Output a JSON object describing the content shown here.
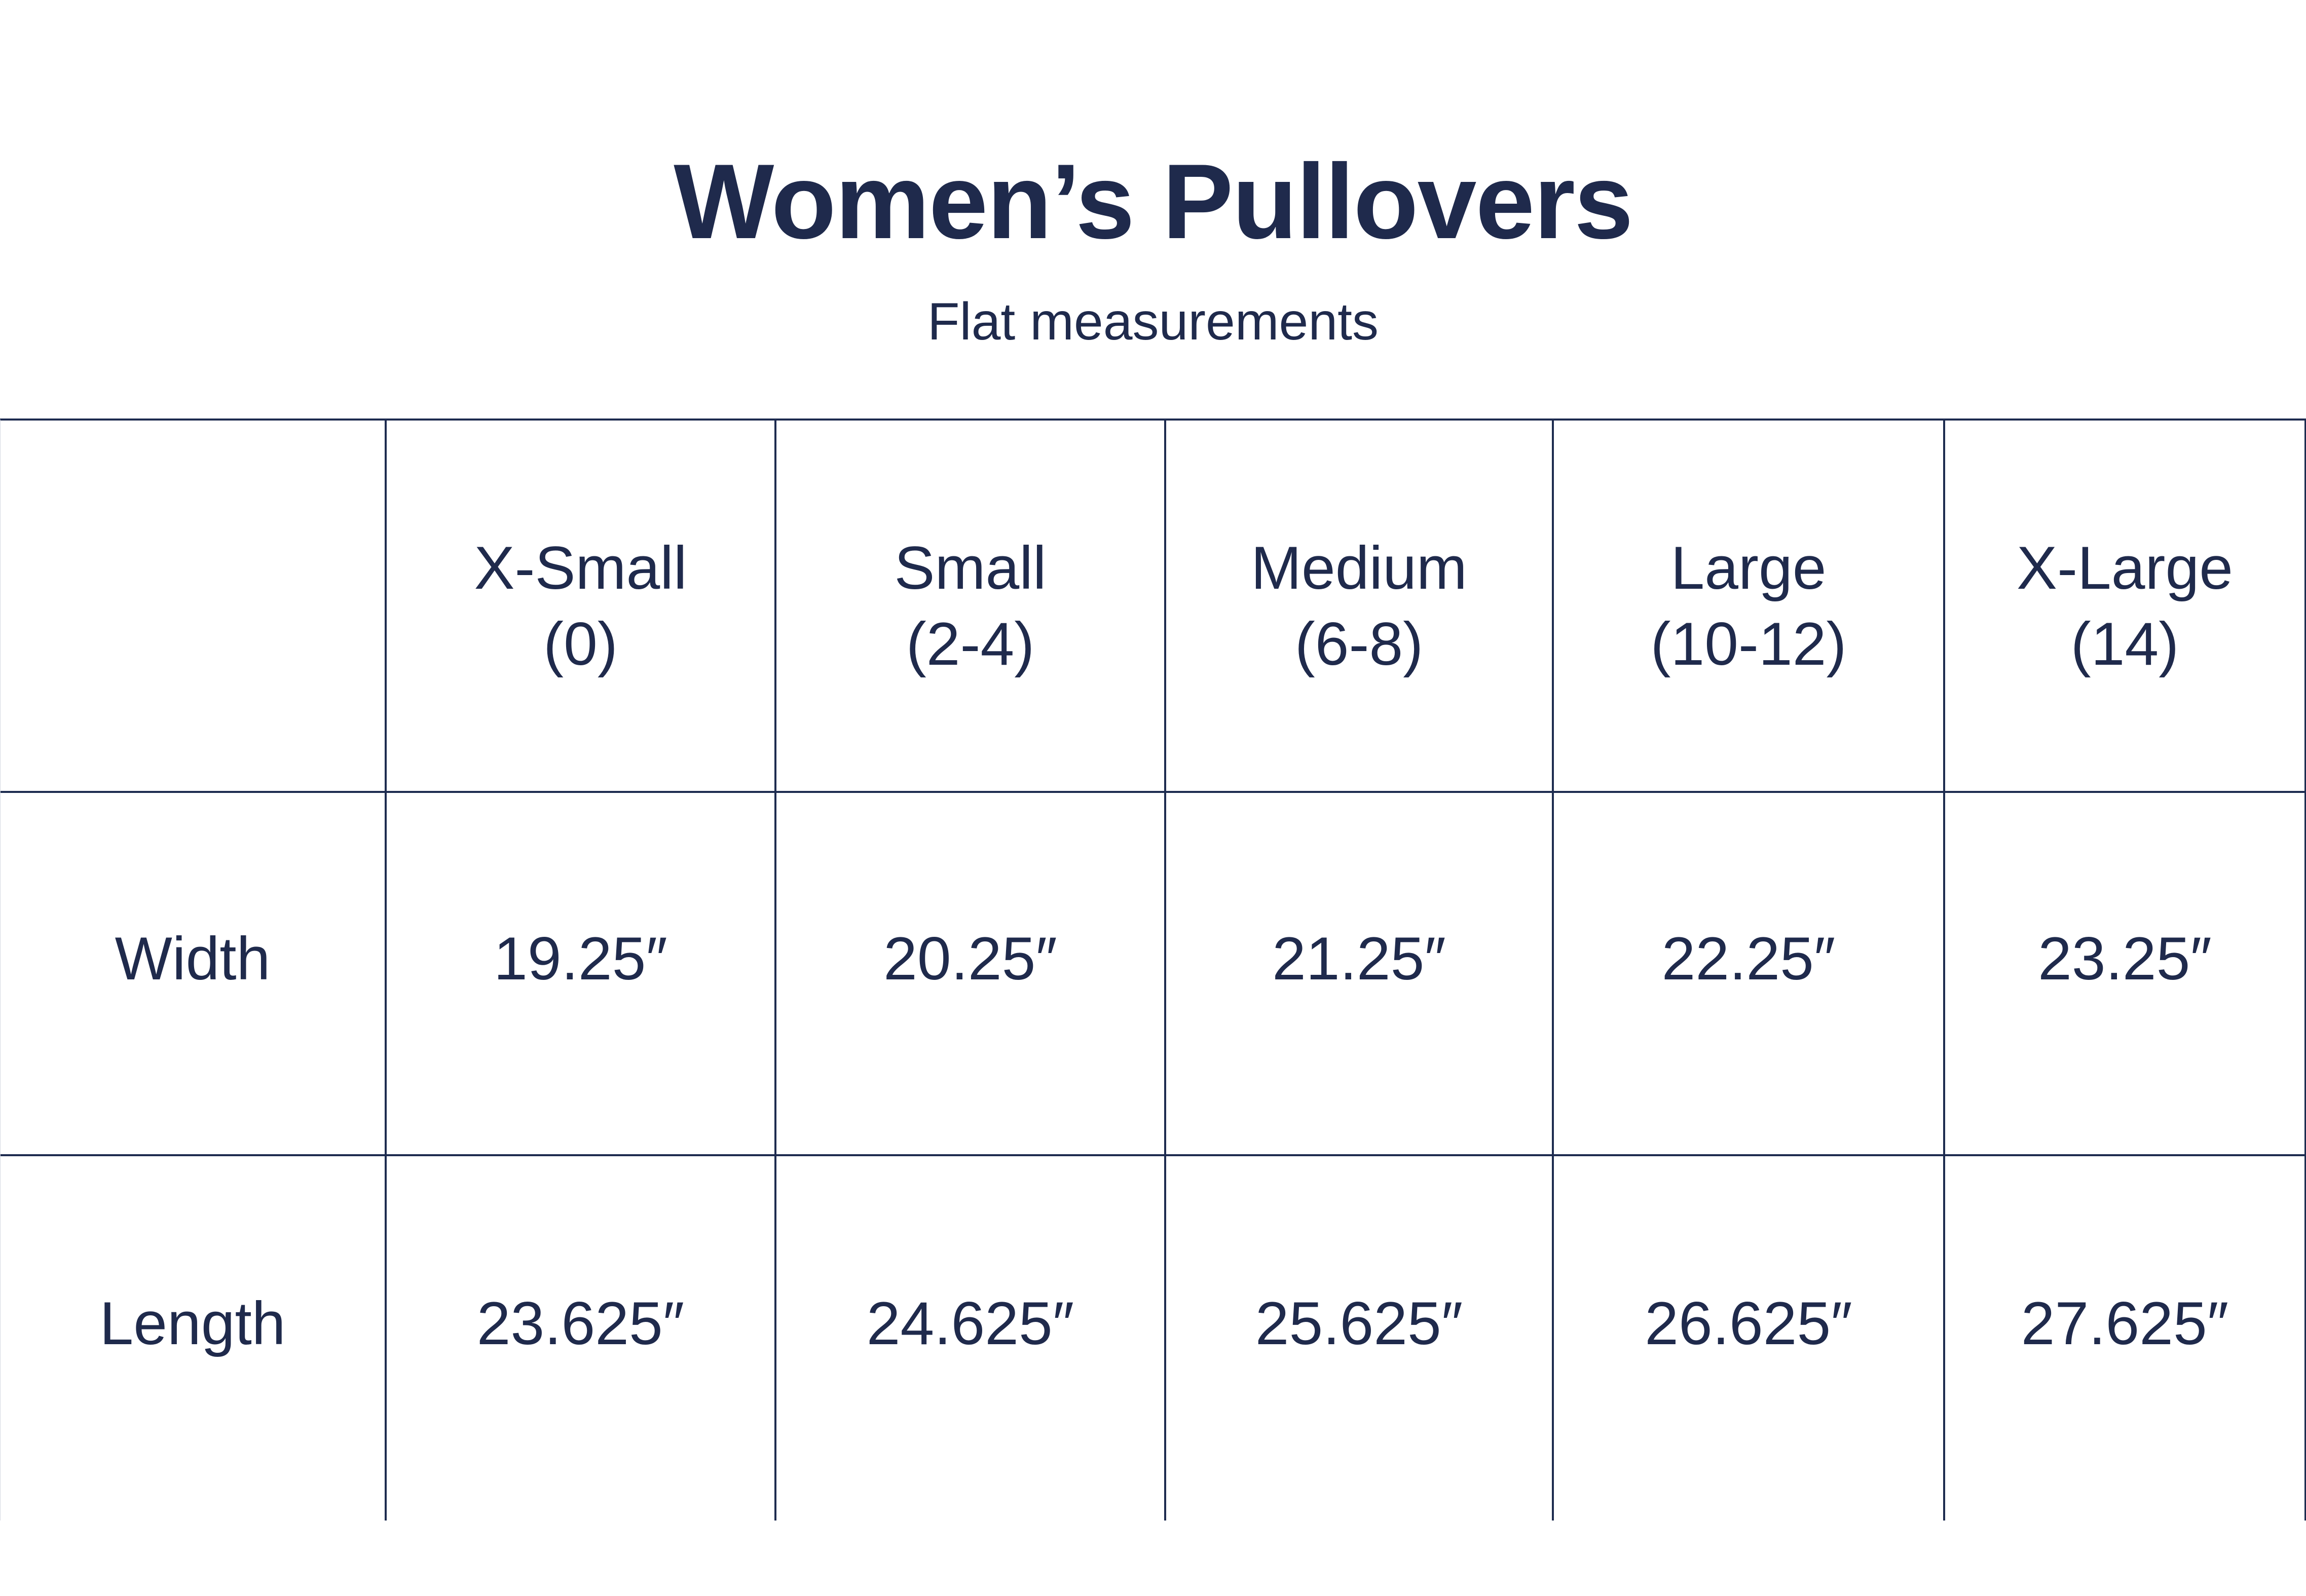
{
  "page": {
    "title": "Women’s Pullovers",
    "subtitle": "Flat measurements"
  },
  "colors": {
    "text": "#1f2a4c",
    "grid_lines": "#1e2c50",
    "background": "#ffffff"
  },
  "table": {
    "header": [
      {
        "label": "X-Small",
        "sub": "(0)"
      },
      {
        "label": "Small",
        "sub": "(2-4)"
      },
      {
        "label": "Medium",
        "sub": "(6-8)"
      },
      {
        "label": "Large",
        "sub": "(10-12)"
      },
      {
        "label": "X-Large",
        "sub": "(14)"
      }
    ],
    "rows": [
      {
        "label": "Width",
        "values": [
          "19.25″",
          "20.25″",
          "21.25″",
          "22.25″",
          "23.25″"
        ]
      },
      {
        "label": "Length",
        "values": [
          "23.625″",
          "24.625″",
          "25.625″",
          "26.625″",
          "27.625″"
        ]
      }
    ]
  },
  "chart_data": {
    "type": "table",
    "title": "Women’s Pullovers",
    "subtitle": "Flat measurements",
    "unit": "inches",
    "columns": [
      "",
      "X-Small (0)",
      "Small (2-4)",
      "Medium (6-8)",
      "Large (10-12)",
      "X-Large (14)"
    ],
    "rows": [
      {
        "label": "Width",
        "values": [
          19.25,
          20.25,
          21.25,
          22.25,
          23.25
        ]
      },
      {
        "label": "Length",
        "values": [
          23.625,
          24.625,
          25.625,
          26.625,
          27.625
        ]
      }
    ]
  }
}
